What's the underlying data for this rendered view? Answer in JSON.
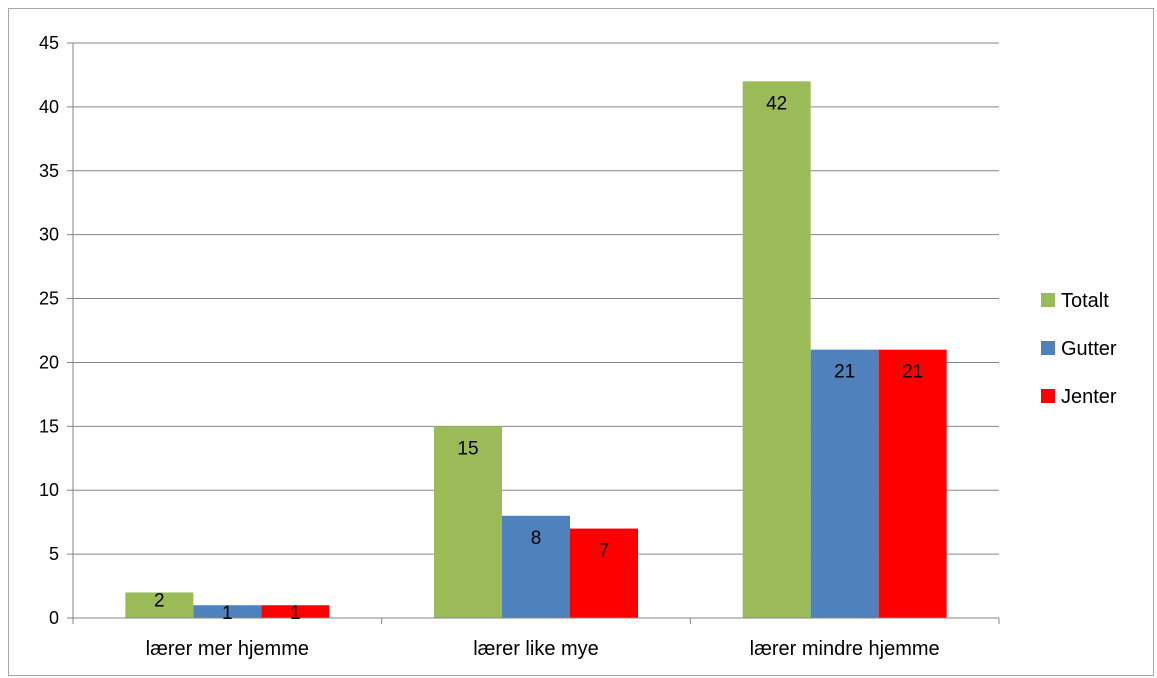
{
  "chart_data": {
    "type": "bar",
    "categories": [
      "lærer mer hjemme",
      "lærer like mye",
      "lærer mindre hjemme"
    ],
    "series": [
      {
        "name": "Totalt",
        "values": [
          2,
          15,
          42
        ],
        "color": "#9BBB59"
      },
      {
        "name": "Gutter",
        "values": [
          1,
          8,
          21
        ],
        "color": "#4F81BD"
      },
      {
        "name": "Jenter",
        "values": [
          1,
          7,
          21
        ],
        "color": "#FF0000"
      }
    ],
    "ylim": [
      0,
      45
    ],
    "yticks": [
      0,
      5,
      10,
      15,
      20,
      25,
      30,
      35,
      40,
      45
    ],
    "grid": true,
    "legend": "right",
    "data_labels": true
  }
}
